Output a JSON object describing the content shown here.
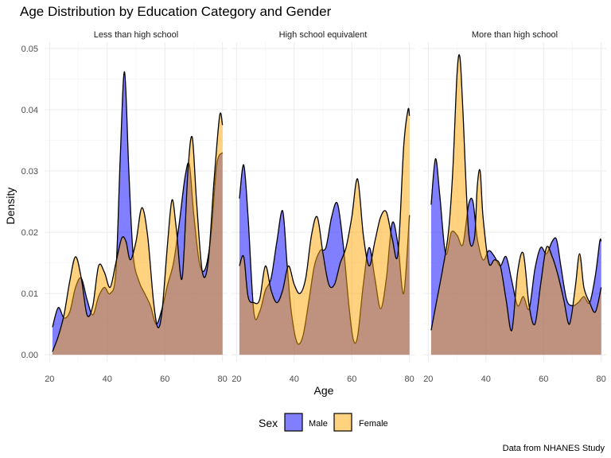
{
  "chart_data": {
    "type": "area",
    "title": "Age Distribution by Education Category and Gender",
    "xlabel": "Age",
    "ylabel": "Density",
    "caption": "Data from NHANES Study",
    "xlim": [
      20,
      80
    ],
    "ylim": [
      0,
      0.05
    ],
    "x_ticks": [
      "20",
      "40",
      "60",
      "80"
    ],
    "y_ticks": [
      "0.00",
      "0.01",
      "0.02",
      "0.03",
      "0.04",
      "0.05"
    ],
    "grid": true,
    "legend": {
      "title": "Sex",
      "position": "bottom",
      "entries": [
        {
          "label": "Male",
          "color": "#0000FF"
        },
        {
          "label": "Female",
          "color": "#FFA500"
        }
      ]
    },
    "panels": [
      {
        "name": "Less than high school",
        "series": [
          {
            "name": "Male",
            "points": [
              [
                21,
                0.0045
              ],
              [
                23,
                0.0077
              ],
              [
                25,
                0.006
              ],
              [
                27,
                0.007
              ],
              [
                29,
                0.011
              ],
              [
                31,
                0.0125
              ],
              [
                33,
                0.009
              ],
              [
                35,
                0.0065
              ],
              [
                37,
                0.0095
              ],
              [
                39,
                0.011
              ],
              [
                41,
                0.01
              ],
              [
                43,
                0.0135
              ],
              [
                44.5,
                0.032
              ],
              [
                46,
                0.0462
              ],
              [
                47.5,
                0.03
              ],
              [
                49,
                0.0163
              ],
              [
                51,
                0.012
              ],
              [
                53,
                0.01
              ],
              [
                55,
                0.008
              ],
              [
                57,
                0.005
              ],
              [
                59,
                0.0075
              ],
              [
                61,
                0.0115
              ],
              [
                63,
                0.015
              ],
              [
                65,
                0.0215
              ],
              [
                67,
                0.029
              ],
              [
                68.5,
                0.031
              ],
              [
                70,
                0.023
              ],
              [
                72,
                0.015
              ],
              [
                74,
                0.014
              ],
              [
                76,
                0.0195
              ],
              [
                78,
                0.031
              ],
              [
                80,
                0.033
              ]
            ]
          },
          {
            "name": "Female",
            "points": [
              [
                21,
                0.0005
              ],
              [
                23,
                0.003
              ],
              [
                25,
                0.0065
              ],
              [
                27,
                0.012
              ],
              [
                29,
                0.016
              ],
              [
                31,
                0.0125
              ],
              [
                33,
                0.0065
              ],
              [
                35,
                0.008
              ],
              [
                37,
                0.0145
              ],
              [
                39,
                0.0135
              ],
              [
                41,
                0.011
              ],
              [
                43,
                0.015
              ],
              [
                45,
                0.019
              ],
              [
                46.5,
                0.0185
              ],
              [
                48,
                0.0155
              ],
              [
                50,
                0.0185
              ],
              [
                52,
                0.024
              ],
              [
                54,
                0.0195
              ],
              [
                56,
                0.009
              ],
              [
                57.5,
                0.0045
              ],
              [
                59,
                0.007
              ],
              [
                61,
                0.0185
              ],
              [
                62.5,
                0.0253
              ],
              [
                64,
                0.0205
              ],
              [
                66,
                0.0125
              ],
              [
                68,
                0.03
              ],
              [
                69.5,
                0.0355
              ],
              [
                71,
                0.025
              ],
              [
                73,
                0.0135
              ],
              [
                75,
                0.015
              ],
              [
                77,
                0.028
              ],
              [
                79,
                0.039
              ],
              [
                80,
                0.0375
              ]
            ]
          }
        ]
      },
      {
        "name": "High school equivalent",
        "series": [
          {
            "name": "Male",
            "points": [
              [
                21,
                0.0255
              ],
              [
                22.5,
                0.031
              ],
              [
                24,
                0.0225
              ],
              [
                26,
                0.007
              ],
              [
                28,
                0.007
              ],
              [
                30,
                0.0105
              ],
              [
                32,
                0.0125
              ],
              [
                34,
                0.0185
              ],
              [
                36,
                0.0235
              ],
              [
                37.5,
                0.015
              ],
              [
                39,
                0.007
              ],
              [
                41,
                0.002
              ],
              [
                43,
                0.003
              ],
              [
                45,
                0.0085
              ],
              [
                47,
                0.0145
              ],
              [
                49,
                0.017
              ],
              [
                51,
                0.0175
              ],
              [
                53,
                0.0225
              ],
              [
                55,
                0.0247
              ],
              [
                57,
                0.018
              ],
              [
                59,
                0.008
              ],
              [
                60.5,
                0.0025
              ],
              [
                62,
                0.003
              ],
              [
                64,
                0.0115
              ],
              [
                66,
                0.0175
              ],
              [
                68,
                0.0125
              ],
              [
                70,
                0.0075
              ],
              [
                72,
                0.0125
              ],
              [
                74,
                0.0215
              ],
              [
                76,
                0.018
              ],
              [
                78,
                0.01
              ],
              [
                80,
                0.0228
              ]
            ]
          },
          {
            "name": "Female",
            "points": [
              [
                21,
                0.0145
              ],
              [
                22.5,
                0.016
              ],
              [
                24,
                0.0095
              ],
              [
                26,
                0.0085
              ],
              [
                28,
                0.009
              ],
              [
                30,
                0.0145
              ],
              [
                32,
                0.0105
              ],
              [
                34,
                0.0085
              ],
              [
                36,
                0.0105
              ],
              [
                38,
                0.0145
              ],
              [
                40,
                0.0115
              ],
              [
                42,
                0.01
              ],
              [
                44,
                0.0125
              ],
              [
                46,
                0.0195
              ],
              [
                48,
                0.0225
              ],
              [
                50,
                0.0165
              ],
              [
                52,
                0.0115
              ],
              [
                54,
                0.0115
              ],
              [
                56,
                0.015
              ],
              [
                58,
                0.0175
              ],
              [
                60,
                0.0225
              ],
              [
                62,
                0.0287
              ],
              [
                64,
                0.0195
              ],
              [
                66,
                0.0145
              ],
              [
                68,
                0.0185
              ],
              [
                70,
                0.0225
              ],
              [
                72,
                0.0233
              ],
              [
                74,
                0.019
              ],
              [
                76,
                0.0165
              ],
              [
                78,
                0.034
              ],
              [
                79.5,
                0.04
              ],
              [
                80,
                0.039
              ]
            ]
          }
        ]
      },
      {
        "name": "More than high school",
        "series": [
          {
            "name": "Male",
            "points": [
              [
                21,
                0.0245
              ],
              [
                22.5,
                0.032
              ],
              [
                24,
                0.026
              ],
              [
                26,
                0.0165
              ],
              [
                28,
                0.02
              ],
              [
                30,
                0.0195
              ],
              [
                32,
                0.018
              ],
              [
                34,
                0.0245
              ],
              [
                35.5,
                0.025
              ],
              [
                37,
                0.019
              ],
              [
                39,
                0.0155
              ],
              [
                41,
                0.017
              ],
              [
                43,
                0.016
              ],
              [
                45,
                0.0145
              ],
              [
                47,
                0.016
              ],
              [
                49,
                0.012
              ],
              [
                51,
                0.008
              ],
              [
                53,
                0.0095
              ],
              [
                55,
                0.0075
              ],
              [
                57,
                0.014
              ],
              [
                59,
                0.0175
              ],
              [
                61,
                0.0165
              ],
              [
                63,
                0.0185
              ],
              [
                64.5,
                0.0188
              ],
              [
                66,
                0.0145
              ],
              [
                68,
                0.009
              ],
              [
                70,
                0.008
              ],
              [
                72,
                0.0085
              ],
              [
                74,
                0.0095
              ],
              [
                76,
                0.0085
              ],
              [
                78,
                0.013
              ],
              [
                79.5,
                0.0185
              ],
              [
                80,
                0.0185
              ]
            ]
          },
          {
            "name": "Female",
            "points": [
              [
                21,
                0.004
              ],
              [
                23,
                0.009
              ],
              [
                25,
                0.014
              ],
              [
                27,
                0.02
              ],
              [
                28.5,
                0.03
              ],
              [
                30,
                0.046
              ],
              [
                31,
                0.0485
              ],
              [
                32,
                0.04
              ],
              [
                34,
                0.02
              ],
              [
                36,
                0.019
              ],
              [
                37,
                0.0275
              ],
              [
                38,
                0.03
              ],
              [
                39,
                0.0225
              ],
              [
                41,
                0.015
              ],
              [
                43,
                0.0155
              ],
              [
                45,
                0.0145
              ],
              [
                47,
                0.009
              ],
              [
                49,
                0.004
              ],
              [
                51,
                0.0135
              ],
              [
                53,
                0.0165
              ],
              [
                55,
                0.008
              ],
              [
                57,
                0.005
              ],
              [
                59,
                0.0115
              ],
              [
                61,
                0.0175
              ],
              [
                63,
                0.016
              ],
              [
                65,
                0.013
              ],
              [
                67,
                0.009
              ],
              [
                69,
                0.005
              ],
              [
                71,
                0.011
              ],
              [
                72.5,
                0.0165
              ],
              [
                74,
                0.011
              ],
              [
                76,
                0.0085
              ],
              [
                78,
                0.007
              ],
              [
                80,
                0.011
              ]
            ]
          }
        ]
      }
    ]
  }
}
